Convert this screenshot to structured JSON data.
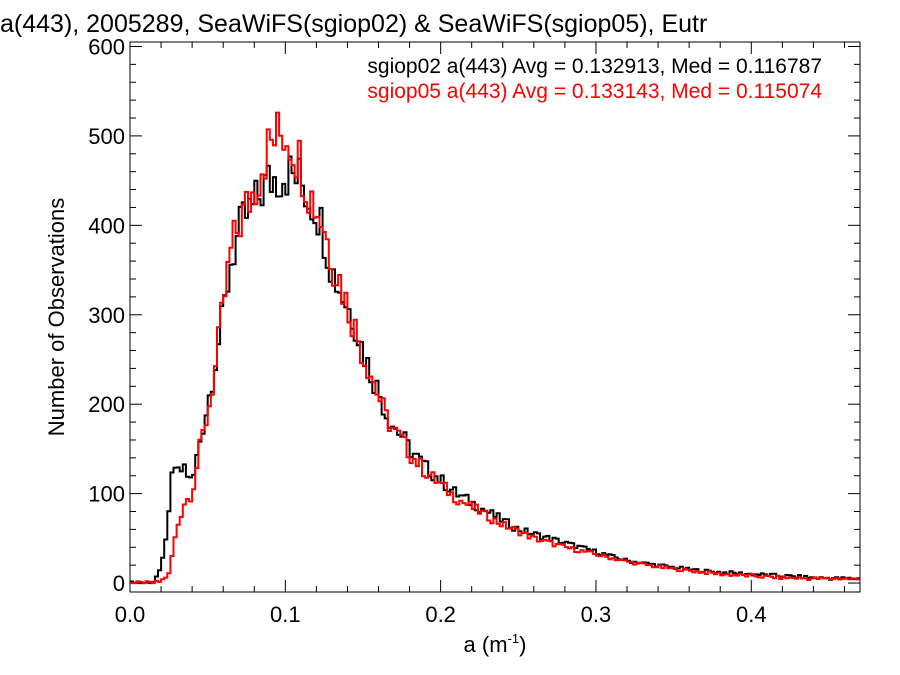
{
  "chart_data": {
    "type": "line",
    "style": "histogram-step",
    "title": "a(443), 2005289, SeaWiFS(sgiop02) & SeaWiFS(sgiop05), Eutr",
    "xlabel": "a (m",
    "xlabel_sup": "-1",
    "xlabel_close": ")",
    "ylabel": "Number of Observations",
    "xlim": [
      0.0,
      0.47
    ],
    "ylim": [
      -10,
      605
    ],
    "x_ticks": [
      0.0,
      0.1,
      0.2,
      0.3,
      0.4
    ],
    "x_tick_labels": [
      "0.0",
      "0.1",
      "0.2",
      "0.3",
      "0.4"
    ],
    "y_ticks": [
      0,
      100,
      200,
      300,
      400,
      500,
      600
    ],
    "y_tick_labels": [
      "0",
      "100",
      "200",
      "300",
      "400",
      "500",
      "600"
    ],
    "grid": false,
    "legend": "top-right",
    "series": [
      {
        "name": "sgiop02 a(443) Avg = 0.132913, Med = 0.116787",
        "color": "#000000",
        "x": [
          0.0,
          0.01,
          0.015,
          0.02,
          0.025,
          0.028,
          0.03,
          0.035,
          0.04,
          0.045,
          0.05,
          0.055,
          0.06,
          0.065,
          0.07,
          0.075,
          0.08,
          0.085,
          0.09,
          0.095,
          0.1,
          0.105,
          0.11,
          0.115,
          0.12,
          0.125,
          0.13,
          0.135,
          0.14,
          0.145,
          0.15,
          0.155,
          0.16,
          0.165,
          0.17,
          0.175,
          0.18,
          0.19,
          0.2,
          0.21,
          0.22,
          0.23,
          0.24,
          0.25,
          0.26,
          0.28,
          0.3,
          0.32,
          0.34,
          0.36,
          0.38,
          0.4,
          0.42,
          0.44,
          0.46,
          0.47
        ],
        "y": [
          0,
          0,
          2,
          15,
          75,
          140,
          120,
          130,
          110,
          160,
          200,
          250,
          300,
          360,
          390,
          410,
          420,
          440,
          450,
          455,
          460,
          455,
          450,
          430,
          420,
          390,
          350,
          330,
          310,
          290,
          260,
          235,
          215,
          190,
          175,
          165,
          150,
          130,
          115,
          100,
          90,
          80,
          70,
          60,
          55,
          45,
          35,
          25,
          20,
          15,
          12,
          10,
          8,
          6,
          5,
          5
        ]
      },
      {
        "name": "sgiop05 a(443) Avg = 0.133143, Med = 0.115074",
        "color": "#ff0000",
        "x": [
          0.0,
          0.01,
          0.015,
          0.02,
          0.025,
          0.028,
          0.03,
          0.035,
          0.04,
          0.045,
          0.05,
          0.055,
          0.06,
          0.065,
          0.07,
          0.075,
          0.08,
          0.085,
          0.09,
          0.095,
          0.1,
          0.105,
          0.11,
          0.115,
          0.12,
          0.125,
          0.13,
          0.135,
          0.14,
          0.145,
          0.15,
          0.155,
          0.16,
          0.165,
          0.17,
          0.175,
          0.18,
          0.19,
          0.2,
          0.21,
          0.22,
          0.23,
          0.24,
          0.25,
          0.26,
          0.28,
          0.3,
          0.32,
          0.34,
          0.36,
          0.38,
          0.4,
          0.42,
          0.44,
          0.46,
          0.47
        ],
        "y": [
          0,
          0,
          0,
          2,
          10,
          40,
          60,
          90,
          100,
          150,
          190,
          240,
          310,
          370,
          400,
          420,
          440,
          470,
          490,
          500,
          505,
          490,
          470,
          440,
          420,
          400,
          360,
          340,
          310,
          285,
          255,
          235,
          210,
          185,
          170,
          160,
          145,
          125,
          110,
          95,
          85,
          75,
          65,
          58,
          50,
          40,
          32,
          24,
          18,
          14,
          10,
          8,
          6,
          5,
          5,
          4
        ]
      }
    ]
  }
}
